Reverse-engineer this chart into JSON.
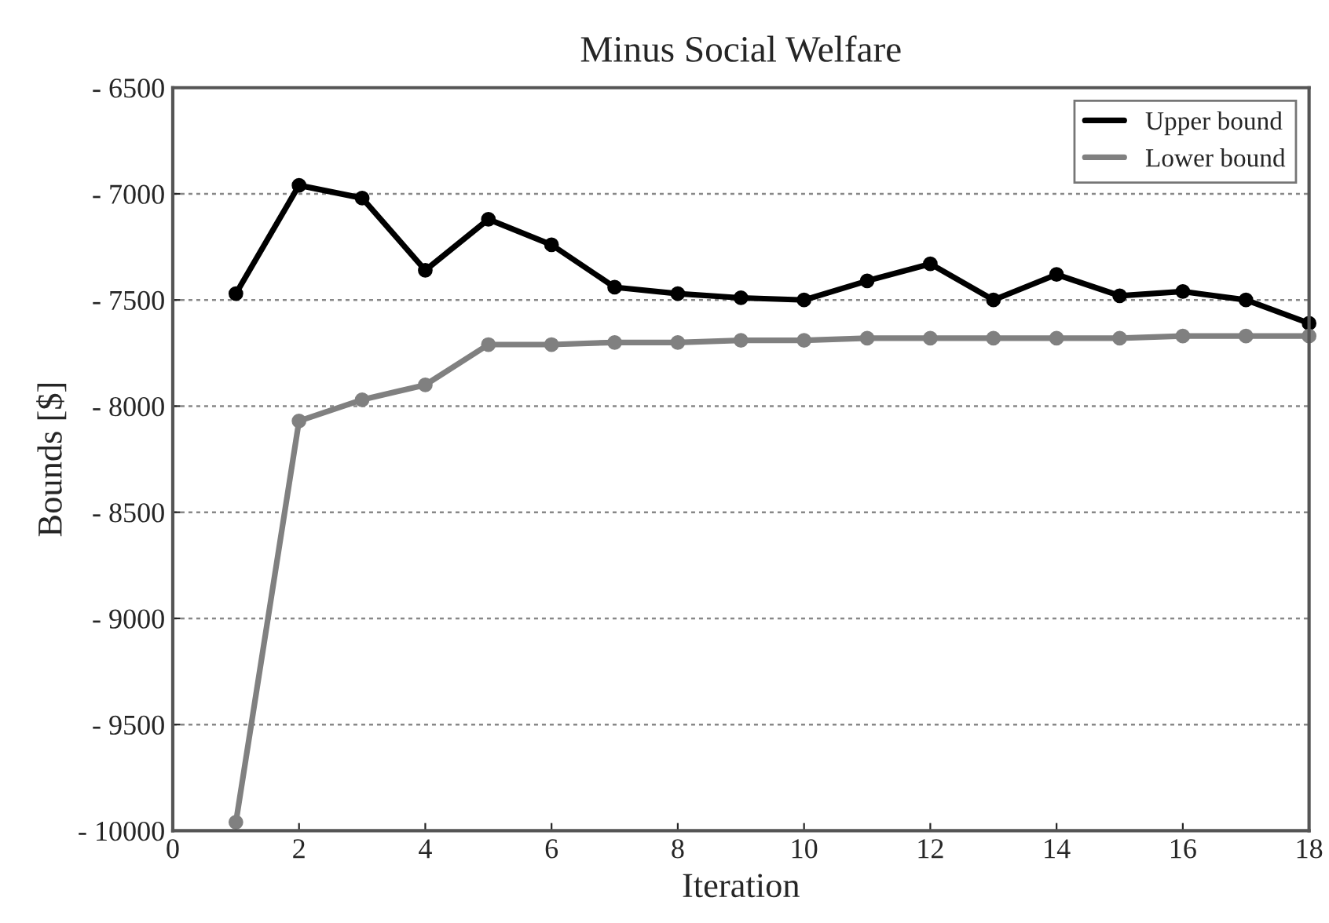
{
  "chart_data": {
    "type": "line",
    "title": "Minus Social Welfare",
    "xlabel": "Iteration",
    "ylabel": "Bounds [$]",
    "x": [
      1,
      2,
      3,
      4,
      5,
      6,
      7,
      8,
      9,
      10,
      11,
      12,
      13,
      14,
      15,
      16,
      17,
      18
    ],
    "series": [
      {
        "name": "Upper bound",
        "color": "#000000",
        "values": [
          -7470,
          -6960,
          -7020,
          -7360,
          -7120,
          -7240,
          -7440,
          -7470,
          -7490,
          -7500,
          -7410,
          -7330,
          -7500,
          -7380,
          -7480,
          -7460,
          -7500,
          -7610
        ]
      },
      {
        "name": "Lower bound",
        "color": "#808080",
        "values": [
          -9960,
          -8070,
          -7970,
          -7900,
          -7710,
          -7710,
          -7700,
          -7700,
          -7690,
          -7690,
          -7680,
          -7680,
          -7680,
          -7680,
          -7680,
          -7670,
          -7670,
          -7670
        ]
      }
    ],
    "xlim": [
      0,
      18
    ],
    "xticks": [
      0,
      2,
      4,
      6,
      8,
      10,
      12,
      14,
      16,
      18
    ],
    "ylim": [
      -10000,
      -6500
    ],
    "yticks": [
      {
        "value": -10000,
        "label": "- 10000"
      },
      {
        "value": -9500,
        "label": "- 9500"
      },
      {
        "value": -9000,
        "label": "- 9000"
      },
      {
        "value": -8500,
        "label": "- 8500"
      },
      {
        "value": -8000,
        "label": "- 8000"
      },
      {
        "value": -7500,
        "label": "- 7500"
      },
      {
        "value": -7000,
        "label": "- 7000"
      },
      {
        "value": -6500,
        "label": "- 6500"
      }
    ],
    "grid": "y",
    "legend": "top right",
    "marker": "circle",
    "line_style": "solid"
  }
}
